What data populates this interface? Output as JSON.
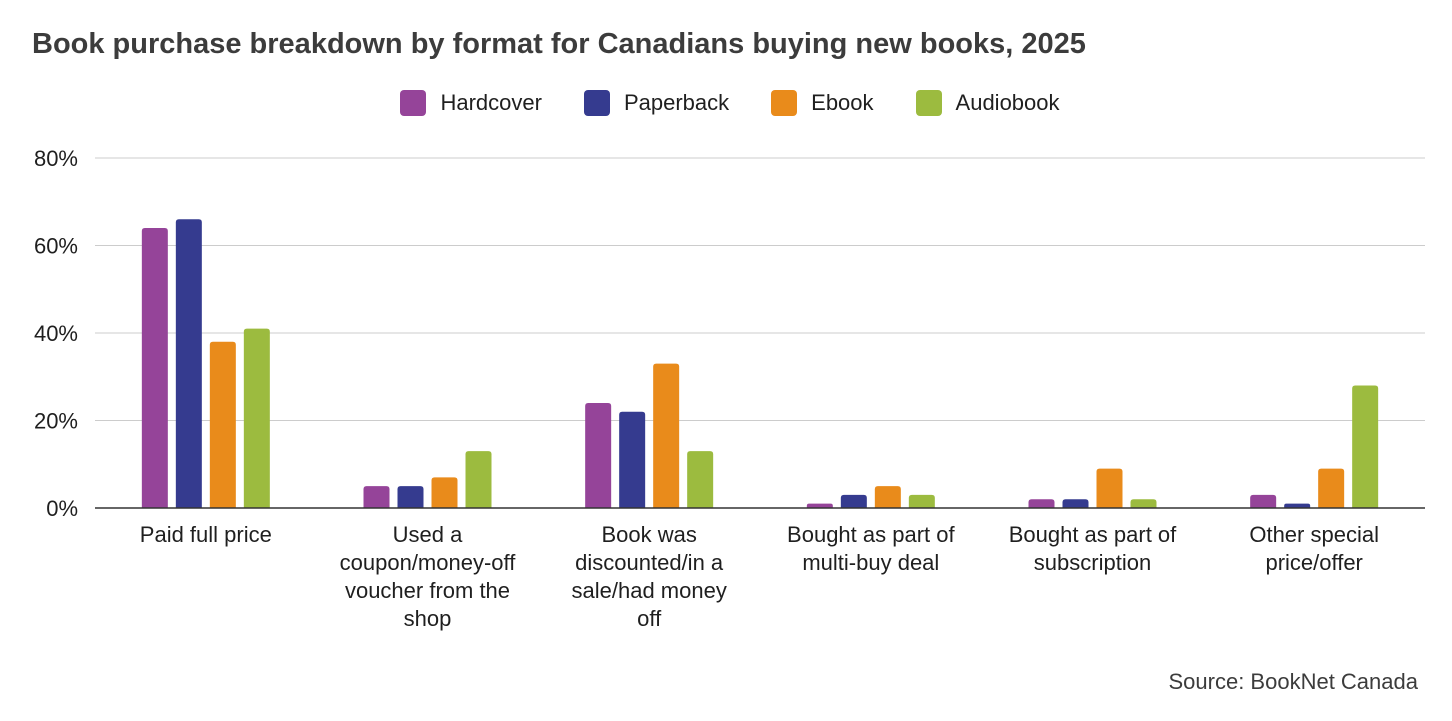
{
  "title": "Book purchase breakdown by format for Canadians buying new books, 2025",
  "source": "Source: BookNet Canada",
  "chart_data": {
    "type": "bar",
    "title": "Book purchase breakdown by format for Canadians buying new books, 2025",
    "categories": [
      [
        "Paid full price"
      ],
      [
        "Used a",
        "coupon/money-off",
        "voucher from the",
        "shop"
      ],
      [
        "Book was",
        "discounted/in a",
        "sale/had money",
        "off"
      ],
      [
        "Bought as part of",
        "multi-buy deal"
      ],
      [
        "Bought as part of",
        "subscription"
      ],
      [
        "Other special",
        "price/offer"
      ]
    ],
    "series": [
      {
        "name": "Hardcover",
        "color": "#954499",
        "values": [
          64,
          5,
          24,
          1,
          2,
          3
        ]
      },
      {
        "name": "Paperback",
        "color": "#353b8f",
        "values": [
          66,
          5,
          22,
          3,
          2,
          1
        ]
      },
      {
        "name": "Ebook",
        "color": "#e98b1b",
        "values": [
          38,
          7,
          33,
          5,
          9,
          9
        ]
      },
      {
        "name": "Audiobook",
        "color": "#9cbb3f",
        "values": [
          41,
          13,
          13,
          3,
          2,
          28
        ]
      }
    ],
    "y_ticks": [
      "0%",
      "20%",
      "40%",
      "60%",
      "80%"
    ],
    "ylim": [
      0,
      80
    ],
    "grid": true,
    "legend": "top-center"
  }
}
